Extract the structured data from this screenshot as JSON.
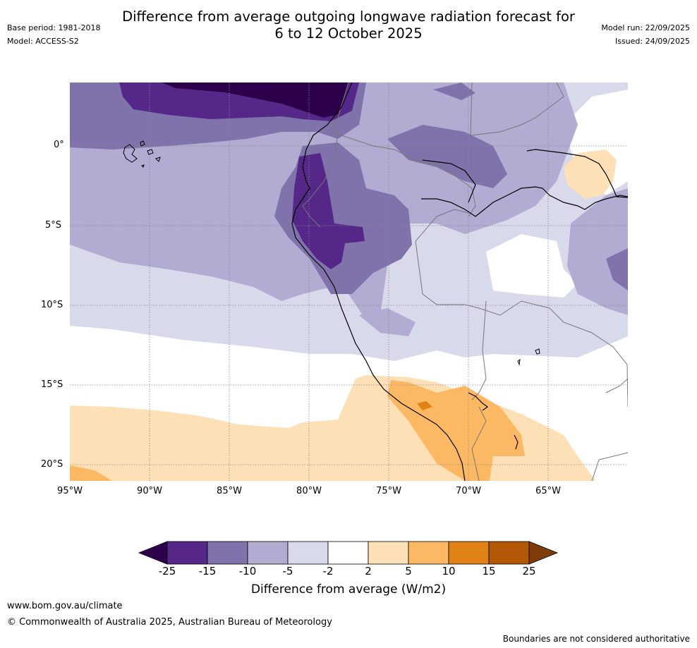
{
  "title": {
    "line1": "Difference from average outgoing longwave radiation forecast for",
    "line2": "6 to 12 October 2025"
  },
  "meta": {
    "base_period": "Base period: 1981-2018",
    "model": "Model: ACCESS-S2",
    "model_run": "Model run: 22/09/2025",
    "issued": "Issued: 24/09/2025"
  },
  "map": {
    "lat_labels": [
      "0°",
      "5°S",
      "10°S",
      "15°S",
      "20°S"
    ],
    "lon_labels": [
      "95°W",
      "90°W",
      "85°W",
      "80°W",
      "75°W",
      "70°W",
      "65°W"
    ]
  },
  "colorbar": {
    "ticks": [
      "-25",
      "-15",
      "-10",
      "-5",
      "-2",
      "2",
      "5",
      "10",
      "15",
      "25"
    ],
    "colors": [
      "#2d004b",
      "#542788",
      "#8073ac",
      "#b2abd2",
      "#d8daeb",
      "#ffffff",
      "#fee0b6",
      "#fdb863",
      "#e08214",
      "#b35806",
      "#7f3b08"
    ],
    "label": "Difference from average (W/m2)"
  },
  "footer": {
    "url": "www.bom.gov.au/climate",
    "copyright": "© Commonwealth of Australia 2025, Australian Bureau of Meteorology",
    "disclaimer": "Boundaries are not considered authoritative"
  }
}
